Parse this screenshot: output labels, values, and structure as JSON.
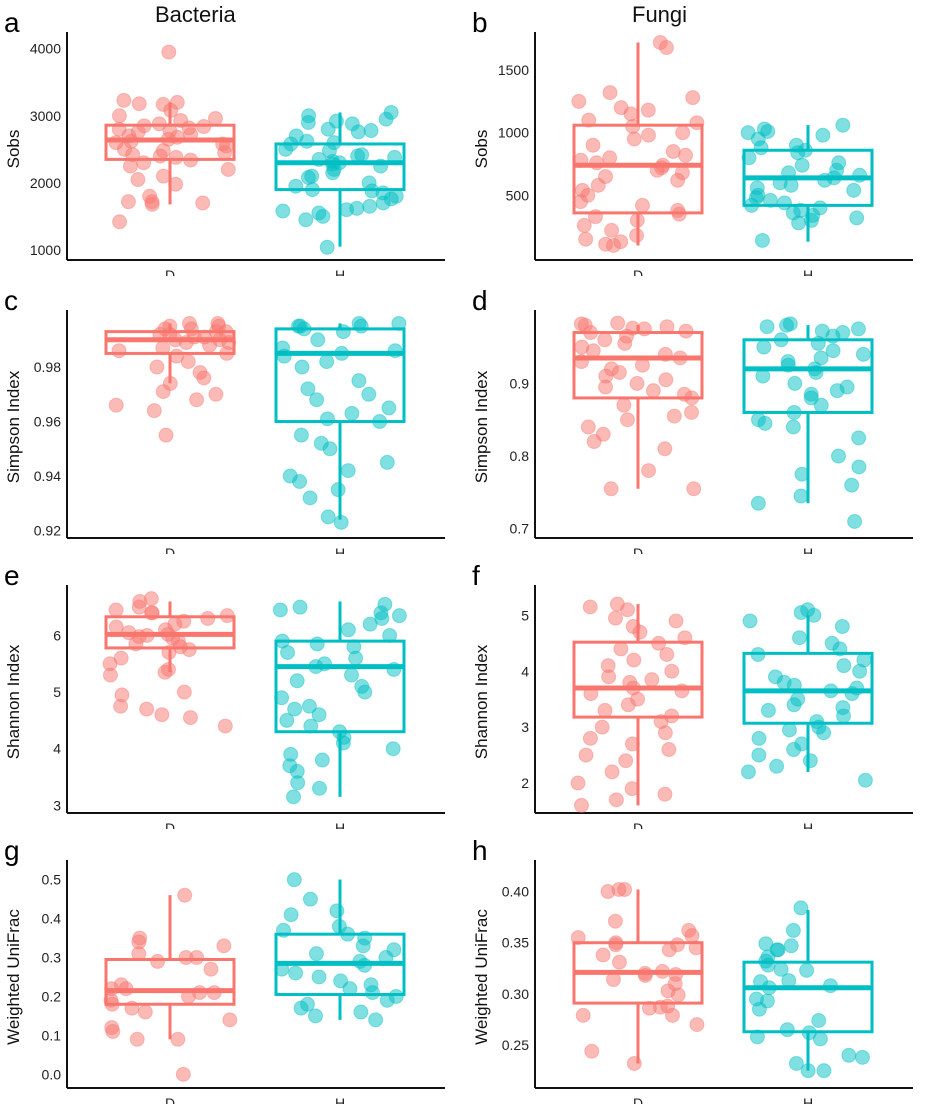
{
  "colors": {
    "D": "#f8766d",
    "H": "#00bfc4"
  },
  "column_titles": [
    "Bacteria",
    "Fungi"
  ],
  "chart_data": [
    {
      "type": "box",
      "panel": "a",
      "title": "Bacteria",
      "ylabel": "Sobs",
      "categories": [
        "D",
        "H"
      ],
      "ylim": [
        880,
        4130
      ],
      "yticks": [
        1000,
        2000,
        3000,
        4000
      ],
      "yticklabels": [
        "1000",
        "2000",
        "3000",
        "4000"
      ],
      "boxes": [
        {
          "group": "D",
          "whisker_low": 1680,
          "q1": 2350,
          "median": 2640,
          "q3": 2860,
          "whisker_high": 3200,
          "points": [
            3950,
            3200,
            3230,
            3180,
            3170,
            3080,
            3000,
            2960,
            2930,
            2880,
            2850,
            2840,
            2820,
            2800,
            2780,
            2760,
            2720,
            2700,
            2680,
            2650,
            2620,
            2600,
            2580,
            2550,
            2500,
            2480,
            2450,
            2420,
            2400,
            2380,
            2340,
            2300,
            2250,
            2200,
            2100,
            2050,
            1980,
            1800,
            1720,
            1700,
            1680,
            1720,
            1420
          ]
        },
        {
          "group": "H",
          "whisker_low": 1050,
          "q1": 1900,
          "median": 2300,
          "q3": 2580,
          "whisker_high": 3050,
          "points": [
            3050,
            3000,
            2950,
            2920,
            2900,
            2880,
            2800,
            2780,
            2760,
            2700,
            2620,
            2600,
            2580,
            2500,
            2480,
            2420,
            2400,
            2380,
            2350,
            2320,
            2300,
            2280,
            2250,
            2200,
            2150,
            2100,
            2080,
            2000,
            1950,
            1900,
            1880,
            1850,
            1800,
            1760,
            1700,
            1650,
            1620,
            1600,
            1580,
            1550,
            1500,
            1450,
            1040
          ]
        }
      ]
    },
    {
      "type": "box",
      "panel": "b",
      "title": "Fungi",
      "ylabel": "Sobs",
      "categories": [
        "D",
        "H"
      ],
      "ylim": [
        0,
        1740
      ],
      "yticks": [
        500,
        1000,
        1500
      ],
      "yticklabels": [
        "500",
        "1000",
        "1500"
      ],
      "boxes": [
        {
          "group": "D",
          "whisker_low": 100,
          "q1": 360,
          "median": 740,
          "q3": 1060,
          "whisker_high": 1720,
          "points": [
            1720,
            1680,
            1320,
            1280,
            1250,
            1200,
            1180,
            1150,
            1100,
            1080,
            1050,
            1000,
            980,
            950,
            900,
            850,
            820,
            800,
            780,
            760,
            740,
            720,
            700,
            680,
            650,
            620,
            580,
            540,
            500,
            450,
            420,
            380,
            350,
            330,
            300,
            260,
            220,
            180,
            150,
            130,
            110,
            100
          ]
        },
        {
          "group": "H",
          "whisker_low": 130,
          "q1": 420,
          "median": 640,
          "q3": 860,
          "whisker_high": 1060,
          "points": [
            1060,
            1030,
            1010,
            1000,
            980,
            950,
            900,
            880,
            860,
            840,
            800,
            760,
            740,
            700,
            680,
            660,
            640,
            620,
            600,
            580,
            560,
            540,
            500,
            480,
            460,
            440,
            420,
            400,
            380,
            360,
            340,
            320,
            300,
            280,
            140
          ]
        }
      ]
    },
    {
      "type": "box",
      "panel": "c",
      "title": "",
      "ylabel": "Simpson Index",
      "categories": [
        "D",
        "H"
      ],
      "ylim": [
        0.918,
        0.998
      ],
      "yticks": [
        0.92,
        0.94,
        0.96,
        0.98
      ],
      "yticklabels": [
        "0.92",
        "0.94",
        "0.96",
        "0.98"
      ],
      "boxes": [
        {
          "group": "D",
          "whisker_low": 0.974,
          "q1": 0.985,
          "median": 0.99,
          "q3": 0.993,
          "whisker_high": 0.996,
          "points": [
            0.996,
            0.996,
            0.995,
            0.995,
            0.994,
            0.994,
            0.993,
            0.993,
            0.992,
            0.992,
            0.991,
            0.991,
            0.99,
            0.99,
            0.989,
            0.989,
            0.988,
            0.987,
            0.986,
            0.985,
            0.984,
            0.982,
            0.98,
            0.978,
            0.976,
            0.974,
            0.971,
            0.97,
            0.968,
            0.966,
            0.964,
            0.955
          ]
        },
        {
          "group": "H",
          "whisker_low": 0.924,
          "q1": 0.96,
          "median": 0.985,
          "q3": 0.994,
          "whisker_high": 0.996,
          "points": [
            0.996,
            0.996,
            0.995,
            0.995,
            0.995,
            0.994,
            0.993,
            0.99,
            0.987,
            0.986,
            0.985,
            0.984,
            0.982,
            0.98,
            0.975,
            0.972,
            0.97,
            0.968,
            0.965,
            0.963,
            0.961,
            0.96,
            0.955,
            0.952,
            0.95,
            0.945,
            0.942,
            0.94,
            0.938,
            0.935,
            0.932,
            0.925,
            0.923
          ]
        }
      ]
    },
    {
      "type": "box",
      "panel": "d",
      "title": "",
      "ylabel": "Simpson Index",
      "categories": [
        "D",
        "H"
      ],
      "ylim": [
        0.69,
        0.99
      ],
      "yticks": [
        0.7,
        0.8,
        0.9
      ],
      "yticklabels": [
        "0.7",
        "0.8",
        "0.9"
      ],
      "boxes": [
        {
          "group": "D",
          "whisker_low": 0.755,
          "q1": 0.88,
          "median": 0.935,
          "q3": 0.97,
          "whisker_high": 0.98,
          "points": [
            0.983,
            0.982,
            0.98,
            0.978,
            0.976,
            0.975,
            0.972,
            0.97,
            0.965,
            0.96,
            0.955,
            0.95,
            0.945,
            0.94,
            0.935,
            0.93,
            0.925,
            0.92,
            0.915,
            0.91,
            0.905,
            0.9,
            0.895,
            0.89,
            0.885,
            0.88,
            0.87,
            0.86,
            0.855,
            0.85,
            0.84,
            0.83,
            0.82,
            0.81,
            0.78,
            0.755,
            0.755
          ]
        },
        {
          "group": "H",
          "whisker_low": 0.735,
          "q1": 0.86,
          "median": 0.92,
          "q3": 0.96,
          "whisker_high": 0.98,
          "points": [
            0.982,
            0.98,
            0.978,
            0.975,
            0.972,
            0.97,
            0.965,
            0.96,
            0.955,
            0.95,
            0.945,
            0.94,
            0.935,
            0.93,
            0.925,
            0.92,
            0.915,
            0.91,
            0.9,
            0.895,
            0.89,
            0.885,
            0.88,
            0.87,
            0.86,
            0.85,
            0.845,
            0.84,
            0.825,
            0.8,
            0.785,
            0.775,
            0.76,
            0.745,
            0.735,
            0.71
          ]
        }
      ]
    },
    {
      "type": "box",
      "panel": "e",
      "title": "",
      "ylabel": "Shannon Index",
      "categories": [
        "D",
        "H"
      ],
      "ylim": [
        2.9,
        6.75
      ],
      "yticks": [
        3,
        4,
        5,
        6
      ],
      "yticklabels": [
        "3",
        "4",
        "5",
        "6"
      ],
      "boxes": [
        {
          "group": "D",
          "whisker_low": 5.35,
          "q1": 5.78,
          "median": 6.02,
          "q3": 6.33,
          "whisker_high": 6.6,
          "points": [
            6.65,
            6.6,
            6.5,
            6.45,
            6.4,
            6.4,
            6.35,
            6.3,
            6.25,
            6.2,
            6.15,
            6.1,
            6.05,
            6.02,
            6.0,
            5.98,
            5.95,
            5.9,
            5.85,
            5.8,
            5.75,
            5.7,
            5.6,
            5.5,
            5.4,
            5.35,
            5.3,
            5.0,
            4.95,
            4.75,
            4.7,
            4.6,
            4.55,
            4.4
          ]
        },
        {
          "group": "H",
          "whisker_low": 3.15,
          "q1": 4.3,
          "median": 5.45,
          "q3": 5.9,
          "whisker_high": 6.6,
          "points": [
            6.55,
            6.5,
            6.45,
            6.4,
            6.35,
            6.3,
            6.2,
            6.1,
            6.0,
            5.9,
            5.85,
            5.8,
            5.7,
            5.6,
            5.5,
            5.45,
            5.4,
            5.3,
            5.2,
            5.1,
            5.0,
            4.9,
            4.75,
            4.7,
            4.6,
            4.5,
            4.4,
            4.3,
            4.2,
            4.1,
            4.0,
            3.9,
            3.8,
            3.7,
            3.6,
            3.4,
            3.3,
            3.15
          ]
        }
      ]
    },
    {
      "type": "box",
      "panel": "f",
      "title": "",
      "ylabel": "Shannon Index",
      "categories": [
        "D",
        "H"
      ],
      "ylim": [
        1.5,
        5.4
      ],
      "yticks": [
        2,
        3,
        4,
        5
      ],
      "yticklabels": [
        "2",
        "3",
        "4",
        "5"
      ],
      "boxes": [
        {
          "group": "D",
          "whisker_low": 1.6,
          "q1": 3.18,
          "median": 3.7,
          "q3": 4.52,
          "whisker_high": 5.2,
          "points": [
            5.2,
            5.15,
            5.1,
            4.95,
            4.9,
            4.8,
            4.7,
            4.6,
            4.5,
            4.4,
            4.3,
            4.2,
            4.1,
            4.0,
            3.9,
            3.85,
            3.8,
            3.7,
            3.65,
            3.6,
            3.5,
            3.4,
            3.3,
            3.2,
            3.1,
            3.0,
            2.9,
            2.8,
            2.7,
            2.6,
            2.5,
            2.4,
            2.2,
            2.0,
            1.9,
            1.8,
            1.7,
            1.6
          ]
        },
        {
          "group": "H",
          "whisker_low": 2.2,
          "q1": 3.07,
          "median": 3.65,
          "q3": 4.32,
          "whisker_high": 5.0,
          "points": [
            5.1,
            5.05,
            5.0,
            4.9,
            4.8,
            4.6,
            4.5,
            4.4,
            4.3,
            4.2,
            4.1,
            4.0,
            3.9,
            3.8,
            3.75,
            3.7,
            3.65,
            3.6,
            3.5,
            3.4,
            3.35,
            3.3,
            3.2,
            3.1,
            3.0,
            2.95,
            2.9,
            2.8,
            2.7,
            2.6,
            2.5,
            2.4,
            2.3,
            2.2,
            2.05
          ]
        }
      ]
    },
    {
      "type": "box",
      "panel": "g",
      "title": "",
      "ylabel": "Weighted UniFrac",
      "categories": [
        "D",
        "H"
      ],
      "ylim": [
        -0.03,
        0.53
      ],
      "yticks": [
        0.0,
        0.1,
        0.2,
        0.3,
        0.4,
        0.5
      ],
      "yticklabels": [
        "0.0",
        "0.1",
        "0.2",
        "0.3",
        "0.4",
        "0.5"
      ],
      "boxes": [
        {
          "group": "D",
          "whisker_low": 0.09,
          "q1": 0.18,
          "median": 0.215,
          "q3": 0.295,
          "whisker_high": 0.46,
          "points": [
            0.46,
            0.35,
            0.34,
            0.33,
            0.31,
            0.3,
            0.3,
            0.29,
            0.27,
            0.23,
            0.22,
            0.22,
            0.21,
            0.21,
            0.2,
            0.19,
            0.18,
            0.17,
            0.16,
            0.14,
            0.12,
            0.11,
            0.09,
            0.09,
            0.0
          ]
        },
        {
          "group": "H",
          "whisker_low": 0.14,
          "q1": 0.205,
          "median": 0.285,
          "q3": 0.36,
          "whisker_high": 0.5,
          "points": [
            0.5,
            0.45,
            0.42,
            0.41,
            0.38,
            0.37,
            0.36,
            0.35,
            0.33,
            0.32,
            0.31,
            0.3,
            0.29,
            0.28,
            0.27,
            0.26,
            0.25,
            0.24,
            0.23,
            0.22,
            0.21,
            0.2,
            0.19,
            0.18,
            0.17,
            0.16,
            0.15,
            0.14
          ]
        }
      ]
    },
    {
      "type": "box",
      "panel": "h",
      "title": "",
      "ylabel": "Weighted UniFrac",
      "categories": [
        "D",
        "H"
      ],
      "ylim": [
        0.21,
        0.423
      ],
      "yticks": [
        0.25,
        0.3,
        0.35,
        0.4
      ],
      "yticklabels": [
        "0.25",
        "0.30",
        "0.35",
        "0.40"
      ],
      "boxes": [
        {
          "group": "D",
          "whisker_low": 0.232,
          "q1": 0.291,
          "median": 0.321,
          "q3": 0.35,
          "whisker_high": 0.402,
          "points": [
            0.402,
            0.402,
            0.4,
            0.371,
            0.362,
            0.357,
            0.355,
            0.35,
            0.348,
            0.348,
            0.345,
            0.343,
            0.338,
            0.331,
            0.322,
            0.32,
            0.319,
            0.318,
            0.314,
            0.31,
            0.303,
            0.299,
            0.288,
            0.287,
            0.286,
            0.279,
            0.279,
            0.27,
            0.244,
            0.232
          ]
        },
        {
          "group": "H",
          "whisker_low": 0.225,
          "q1": 0.263,
          "median": 0.306,
          "q3": 0.331,
          "whisker_high": 0.382,
          "points": [
            0.384,
            0.362,
            0.349,
            0.347,
            0.343,
            0.343,
            0.336,
            0.332,
            0.328,
            0.324,
            0.323,
            0.313,
            0.312,
            0.308,
            0.306,
            0.295,
            0.293,
            0.285,
            0.274,
            0.265,
            0.262,
            0.258,
            0.256,
            0.24,
            0.238,
            0.232,
            0.225,
            0.225
          ]
        }
      ]
    }
  ]
}
